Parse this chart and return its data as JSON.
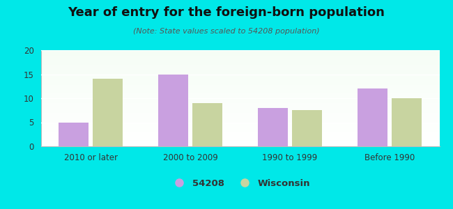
{
  "title": "Year of entry for the foreign-born population",
  "subtitle": "(Note: State values scaled to 54208 population)",
  "categories": [
    "2010 or later",
    "2000 to 2009",
    "1990 to 1999",
    "Before 1990"
  ],
  "values_54208": [
    5,
    15,
    8,
    12
  ],
  "values_wisconsin": [
    14,
    9,
    7.5,
    10
  ],
  "bar_color_54208": "#c9a0e0",
  "bar_color_wisconsin": "#c8d4a0",
  "background_outer": "#00e8e8",
  "ylim": [
    0,
    20
  ],
  "yticks": [
    0,
    5,
    10,
    15,
    20
  ],
  "legend_label_1": "54208",
  "legend_label_2": "Wisconsin",
  "bar_width": 0.3,
  "figsize": [
    6.5,
    3.0
  ],
  "dpi": 100,
  "title_fontsize": 13,
  "subtitle_fontsize": 8,
  "tick_fontsize": 8.5
}
